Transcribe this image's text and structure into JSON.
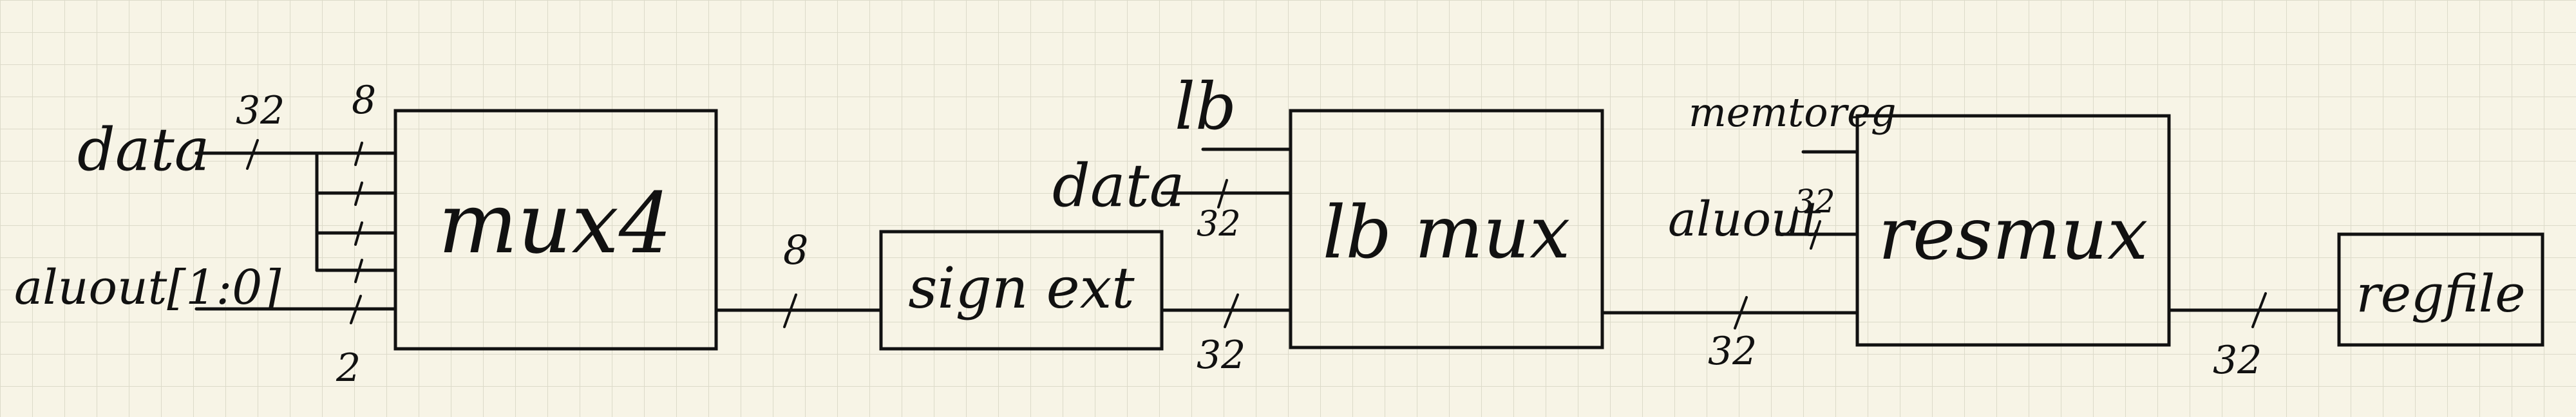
{
  "blocks": {
    "mux4": "mux4",
    "sign_ext": "sign ext",
    "lb_mux": "lb mux",
    "res_mux": "resmux",
    "regfile": "regfile"
  },
  "signals": {
    "data_in": "data",
    "aluout_low": "aluout[1:0]",
    "data_lb": "data",
    "lb": "lb",
    "memtoreg": "memtoreg",
    "aluout": "aluout"
  },
  "widths": {
    "data_in": "32",
    "mux_bytes": "8",
    "aluout_low": "2",
    "mux_out": "8",
    "ext_out": "32",
    "data_lb": "32",
    "lb_out": "32",
    "aluout": "32",
    "res_out": "32"
  },
  "colors": {
    "paper": "#f7f4e6",
    "grid": "#dcdac9",
    "ink": "#111111"
  }
}
